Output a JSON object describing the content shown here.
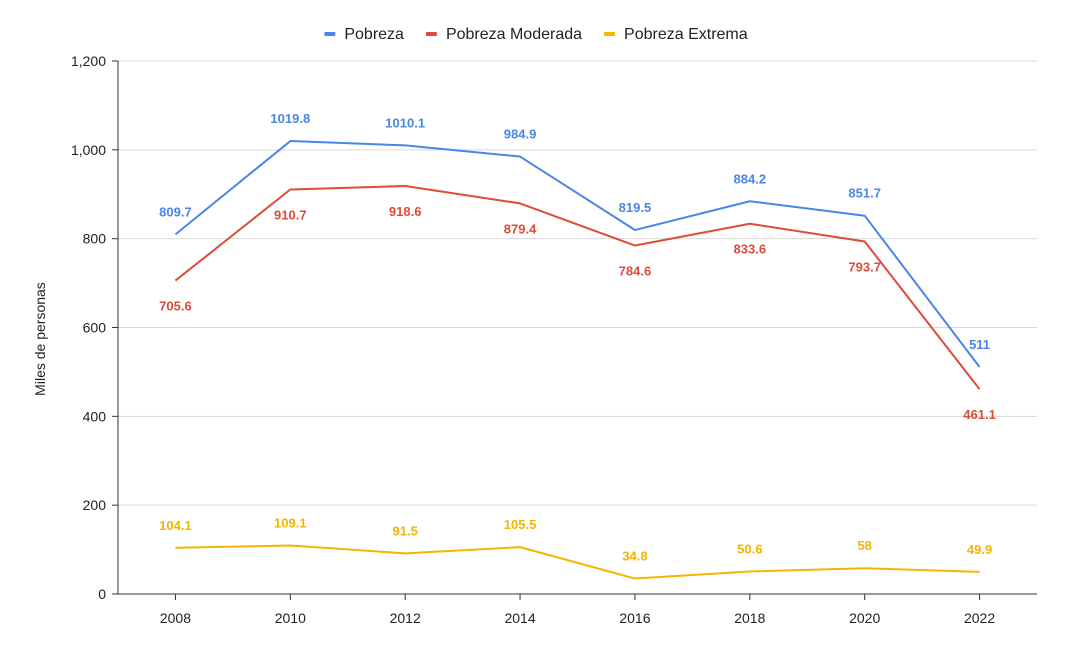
{
  "chart_data": {
    "type": "line",
    "title": "",
    "xlabel": "",
    "ylabel": "Miles de personas",
    "ylim": [
      0,
      1200
    ],
    "yticks": [
      0,
      200,
      400,
      600,
      800,
      1000,
      1200
    ],
    "ytick_labels": [
      "0",
      "200",
      "400",
      "600",
      "800",
      "1,000",
      "1,200"
    ],
    "categories": [
      "2008",
      "2010",
      "2012",
      "2014",
      "2016",
      "2018",
      "2020",
      "2022"
    ],
    "grid": true,
    "legend_position": "top",
    "series": [
      {
        "name": "Pobreza",
        "color": "#4a86e8",
        "values": [
          809.7,
          1019.8,
          1010.1,
          984.9,
          819.5,
          884.2,
          851.7,
          511
        ],
        "labels": [
          "809.7",
          "1019.8",
          "1010.1",
          "984.9",
          "819.5",
          "884.2",
          "851.7",
          "511"
        ],
        "label_placement": "above"
      },
      {
        "name": "Pobreza Moderada",
        "color": "#dd4b39",
        "values": [
          705.6,
          910.7,
          918.6,
          879.4,
          784.6,
          833.6,
          793.7,
          461.1
        ],
        "labels": [
          "705.6",
          "910.7",
          "918.6",
          "879.4",
          "784.6",
          "833.6",
          "793.7",
          "461.1"
        ],
        "label_placement": "below"
      },
      {
        "name": "Pobreza Extrema",
        "color": "#f4b400",
        "values": [
          104.1,
          109.1,
          91.5,
          105.5,
          34.8,
          50.6,
          58,
          49.9
        ],
        "labels": [
          "104.1",
          "109.1",
          "91.5",
          "105.5",
          "34.8",
          "50.6",
          "58",
          "49.9"
        ],
        "label_placement": "above"
      }
    ]
  }
}
